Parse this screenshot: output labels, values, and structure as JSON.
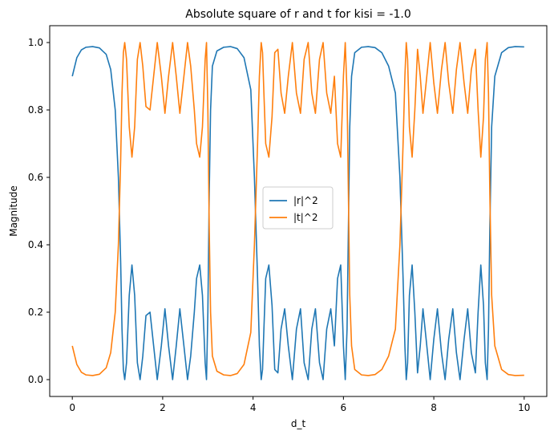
{
  "chart_data": {
    "type": "line",
    "title": "Absolute square of r and t for kisi = -1.0",
    "xlabel": "d_t",
    "ylabel": "Magnitude",
    "xlim": [
      -0.5,
      10.5
    ],
    "ylim": [
      -0.05,
      1.05
    ],
    "xticks": [
      0,
      2,
      4,
      6,
      8,
      10
    ],
    "xtick_labels": [
      "0",
      "2",
      "4",
      "6",
      "8",
      "10"
    ],
    "yticks": [
      0.0,
      0.2,
      0.4,
      0.6,
      0.8,
      1.0
    ],
    "ytick_labels": [
      "0.0",
      "0.2",
      "0.4",
      "0.6",
      "0.8",
      "1.0"
    ],
    "grid": false,
    "legend_position": "center",
    "series": [
      {
        "name": "|r|^2",
        "color": "#1f77b4",
        "x": [
          0,
          0.1,
          0.2,
          0.3,
          0.45,
          0.6,
          0.75,
          0.85,
          0.95,
          1.02,
          1.07,
          1.1,
          1.13,
          1.16,
          1.2,
          1.26,
          1.32,
          1.38,
          1.44,
          1.5,
          1.56,
          1.63,
          1.72,
          1.8,
          1.88,
          1.97,
          2.05,
          2.13,
          2.22,
          2.3,
          2.38,
          2.47,
          2.55,
          2.62,
          2.7,
          2.75,
          2.82,
          2.88,
          2.94,
          2.97,
          3.0,
          3.03,
          3.06,
          3.1,
          3.2,
          3.35,
          3.5,
          3.65,
          3.8,
          3.95,
          4.03,
          4.1,
          4.14,
          4.18,
          4.21,
          4.24,
          4.28,
          4.35,
          4.42,
          4.48,
          4.55,
          4.62,
          4.7,
          4.78,
          4.87,
          4.96,
          5.05,
          5.13,
          5.22,
          5.3,
          5.38,
          5.47,
          5.55,
          5.63,
          5.72,
          5.8,
          5.87,
          5.94,
          6.0,
          6.04,
          6.08,
          6.11,
          6.14,
          6.18,
          6.25,
          6.4,
          6.55,
          6.7,
          6.85,
          7.0,
          7.15,
          7.25,
          7.32,
          7.36,
          7.39,
          7.42,
          7.46,
          7.52,
          7.58,
          7.64,
          7.7,
          7.76,
          7.83,
          7.92,
          8.0,
          8.08,
          8.17,
          8.25,
          8.33,
          8.42,
          8.5,
          8.58,
          8.67,
          8.75,
          8.83,
          8.92,
          8.98,
          9.04,
          9.1,
          9.14,
          9.18,
          9.21,
          9.24,
          9.28,
          9.35,
          9.5,
          9.65,
          9.8,
          10.0
        ],
        "y": [
          0.9,
          0.955,
          0.978,
          0.986,
          0.988,
          0.984,
          0.965,
          0.92,
          0.8,
          0.6,
          0.35,
          0.15,
          0.03,
          0.0,
          0.05,
          0.25,
          0.34,
          0.25,
          0.05,
          0.0,
          0.07,
          0.19,
          0.2,
          0.1,
          0.0,
          0.1,
          0.21,
          0.1,
          0.0,
          0.1,
          0.21,
          0.1,
          0.0,
          0.07,
          0.2,
          0.3,
          0.34,
          0.25,
          0.05,
          0.0,
          0.2,
          0.55,
          0.8,
          0.93,
          0.975,
          0.986,
          0.988,
          0.982,
          0.955,
          0.86,
          0.6,
          0.3,
          0.1,
          0.0,
          0.03,
          0.15,
          0.3,
          0.34,
          0.22,
          0.03,
          0.02,
          0.15,
          0.21,
          0.1,
          0.0,
          0.15,
          0.21,
          0.05,
          0.0,
          0.15,
          0.21,
          0.05,
          0.0,
          0.15,
          0.21,
          0.1,
          0.3,
          0.34,
          0.1,
          0.0,
          0.15,
          0.45,
          0.75,
          0.9,
          0.97,
          0.986,
          0.988,
          0.985,
          0.97,
          0.93,
          0.85,
          0.6,
          0.3,
          0.1,
          0.0,
          0.05,
          0.25,
          0.34,
          0.2,
          0.02,
          0.1,
          0.21,
          0.12,
          0.0,
          0.12,
          0.21,
          0.08,
          0.0,
          0.12,
          0.21,
          0.08,
          0.0,
          0.12,
          0.21,
          0.08,
          0.02,
          0.2,
          0.34,
          0.22,
          0.05,
          0.0,
          0.15,
          0.45,
          0.75,
          0.9,
          0.97,
          0.985,
          0.988,
          0.987
        ]
      },
      {
        "name": "|t|^2",
        "color": "#ff7f0e",
        "x": [
          0,
          0.1,
          0.2,
          0.3,
          0.45,
          0.6,
          0.75,
          0.85,
          0.95,
          1.02,
          1.07,
          1.1,
          1.13,
          1.16,
          1.2,
          1.26,
          1.32,
          1.38,
          1.44,
          1.5,
          1.56,
          1.63,
          1.72,
          1.8,
          1.88,
          1.97,
          2.05,
          2.13,
          2.22,
          2.3,
          2.38,
          2.47,
          2.55,
          2.62,
          2.7,
          2.75,
          2.82,
          2.88,
          2.94,
          2.97,
          3.0,
          3.03,
          3.06,
          3.1,
          3.2,
          3.35,
          3.5,
          3.65,
          3.8,
          3.95,
          4.03,
          4.1,
          4.14,
          4.18,
          4.21,
          4.24,
          4.28,
          4.35,
          4.42,
          4.48,
          4.55,
          4.62,
          4.7,
          4.78,
          4.87,
          4.96,
          5.05,
          5.13,
          5.22,
          5.3,
          5.38,
          5.47,
          5.55,
          5.63,
          5.72,
          5.8,
          5.87,
          5.94,
          6.0,
          6.04,
          6.08,
          6.11,
          6.14,
          6.18,
          6.25,
          6.4,
          6.55,
          6.7,
          6.85,
          7.0,
          7.15,
          7.25,
          7.32,
          7.36,
          7.39,
          7.42,
          7.46,
          7.52,
          7.58,
          7.64,
          7.7,
          7.76,
          7.83,
          7.92,
          8.0,
          8.08,
          8.17,
          8.25,
          8.33,
          8.42,
          8.5,
          8.58,
          8.67,
          8.75,
          8.83,
          8.92,
          8.98,
          9.04,
          9.1,
          9.14,
          9.18,
          9.21,
          9.24,
          9.28,
          9.35,
          9.5,
          9.65,
          9.8,
          10.0
        ],
        "y": [
          0.1,
          0.045,
          0.022,
          0.014,
          0.012,
          0.016,
          0.035,
          0.08,
          0.2,
          0.4,
          0.65,
          0.85,
          0.97,
          1.0,
          0.95,
          0.75,
          0.66,
          0.75,
          0.95,
          1.0,
          0.93,
          0.81,
          0.8,
          0.9,
          1.0,
          0.9,
          0.79,
          0.9,
          1.0,
          0.9,
          0.79,
          0.9,
          1.0,
          0.93,
          0.8,
          0.7,
          0.66,
          0.75,
          0.95,
          1.0,
          0.8,
          0.45,
          0.2,
          0.07,
          0.025,
          0.014,
          0.012,
          0.018,
          0.045,
          0.14,
          0.4,
          0.7,
          0.9,
          1.0,
          0.97,
          0.85,
          0.7,
          0.66,
          0.78,
          0.97,
          0.98,
          0.85,
          0.79,
          0.9,
          1.0,
          0.85,
          0.79,
          0.95,
          1.0,
          0.85,
          0.79,
          0.95,
          1.0,
          0.85,
          0.79,
          0.9,
          0.7,
          0.66,
          0.9,
          1.0,
          0.85,
          0.55,
          0.25,
          0.1,
          0.03,
          0.014,
          0.012,
          0.015,
          0.03,
          0.07,
          0.15,
          0.4,
          0.7,
          0.9,
          1.0,
          0.95,
          0.75,
          0.66,
          0.8,
          0.98,
          0.9,
          0.79,
          0.88,
          1.0,
          0.88,
          0.79,
          0.92,
          1.0,
          0.88,
          0.79,
          0.92,
          1.0,
          0.88,
          0.79,
          0.92,
          0.98,
          0.8,
          0.66,
          0.78,
          0.95,
          1.0,
          0.85,
          0.55,
          0.25,
          0.1,
          0.03,
          0.015,
          0.012,
          0.013
        ]
      }
    ]
  }
}
